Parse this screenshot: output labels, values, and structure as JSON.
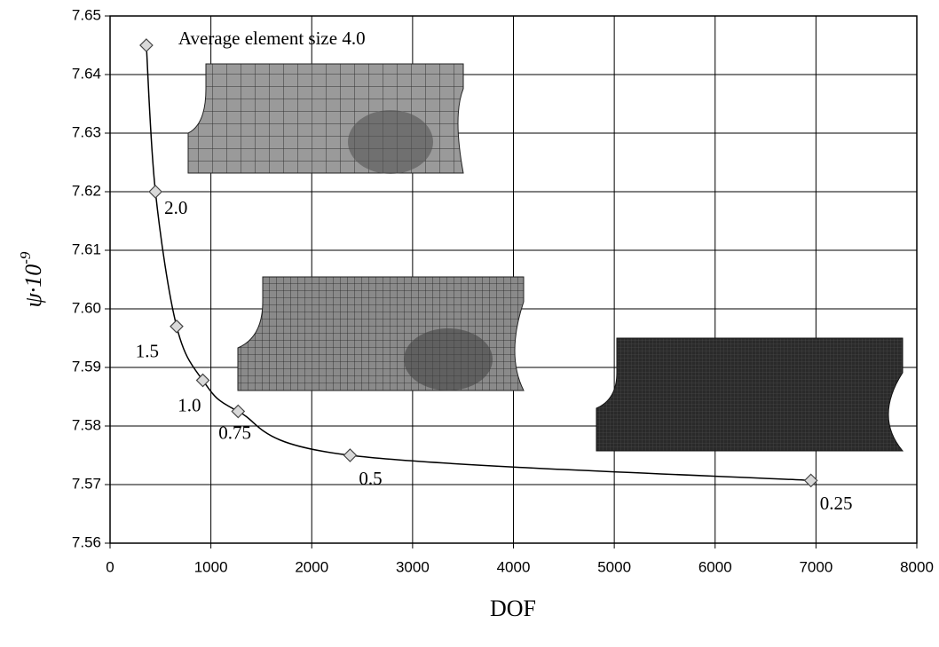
{
  "chart_data": {
    "type": "line",
    "xlabel": "DOF",
    "ylabel": {
      "base": "ψ·10",
      "exponent": "-9"
    },
    "x": [
      360,
      450,
      660,
      920,
      1270,
      2380,
      6950
    ],
    "series": [
      {
        "color": "#000000",
        "marker_color": "#d9d9d9",
        "values": [
          7.645,
          7.62,
          7.597,
          7.5878,
          7.5825,
          7.575,
          7.5707
        ],
        "point_labels": [
          "Average element size 4.0",
          "2.0",
          "1.5",
          "1.0",
          "0.75",
          "0.5",
          "0.25"
        ]
      }
    ],
    "xlim": [
      0,
      8000
    ],
    "xticks": [
      0,
      1000,
      2000,
      3000,
      4000,
      5000,
      6000,
      7000,
      8000
    ],
    "ylim": [
      7.56,
      7.65
    ],
    "yticks": [
      7.56,
      7.57,
      7.58,
      7.59,
      {
        "value": 7.6,
        "label": "7.60"
      },
      7.61,
      7.62,
      7.63,
      7.64,
      7.65
    ],
    "grid": true
  }
}
